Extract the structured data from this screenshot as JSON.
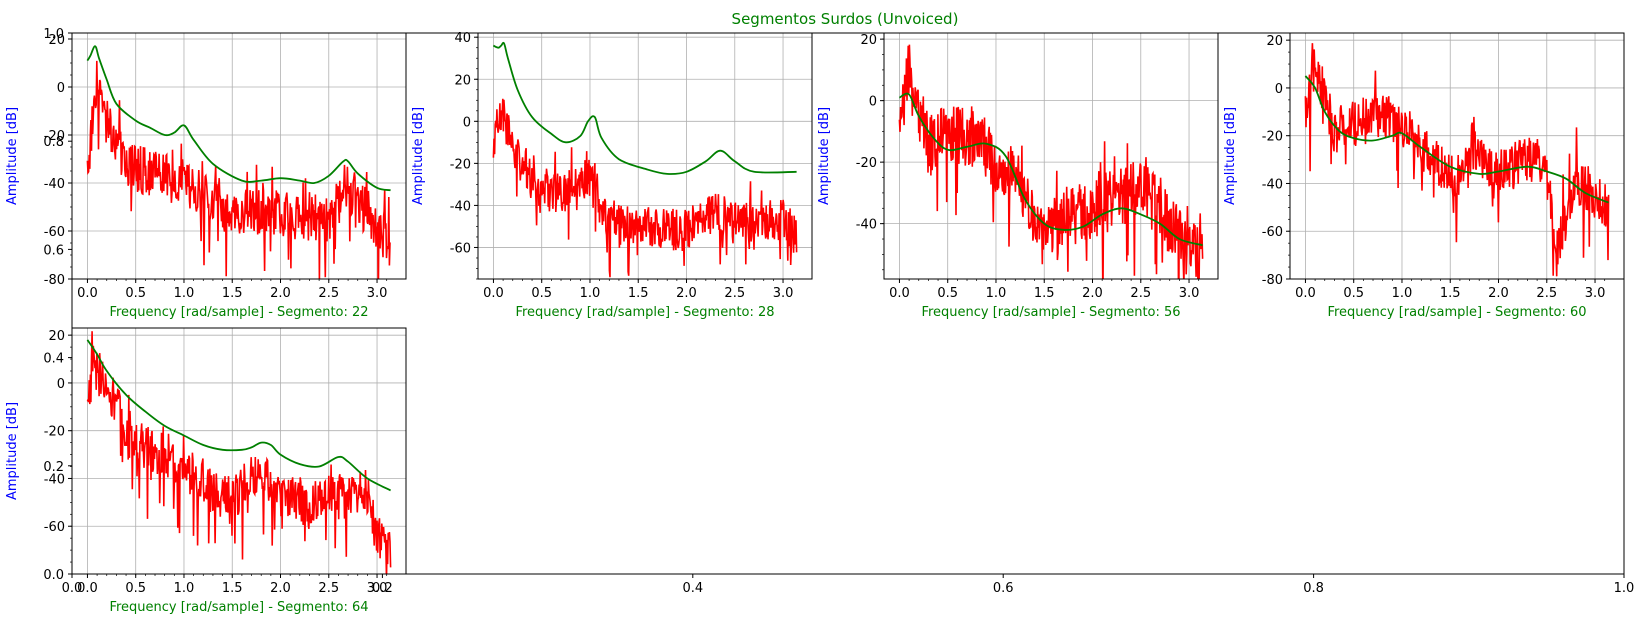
{
  "figure": {
    "title": "Segmentos Surdos (Unvoiced)",
    "title_color": "#008000",
    "ylabel_color": "#0000ff",
    "xlabel_color": "#008000",
    "envelope_color": "#008000",
    "spectrum_color": "#ff0000"
  },
  "background_axis": {
    "xlim": [
      0,
      1
    ],
    "ylim": [
      0,
      1
    ],
    "xticks": [
      "0.0",
      "0.2",
      "0.4",
      "0.6",
      "0.8",
      "1.0"
    ],
    "yticks": [
      "0.0",
      "0.2",
      "0.4",
      "0.6",
      "0.8",
      "1.0"
    ]
  },
  "chart_data": [
    {
      "type": "line",
      "xlabel": "Frequency [rad/sample] - Segmento: 22",
      "ylabel": "Amplitude [dB]",
      "xlim": [
        -0.16,
        3.3
      ],
      "ylim": [
        -80,
        22.5
      ],
      "xticks": [
        "0.0",
        "0.5",
        "1.0",
        "1.5",
        "2.0",
        "2.5",
        "3.0"
      ],
      "yticks": [
        "20",
        "0",
        "-20",
        "-40",
        "-60",
        "-80"
      ],
      "grid": true,
      "series": [
        {
          "role": "envelope",
          "x": [
            0.0,
            0.03,
            0.08,
            0.12,
            0.2,
            0.3,
            0.5,
            0.65,
            0.8,
            0.9,
            1.0,
            1.1,
            1.3,
            1.6,
            1.8,
            2.0,
            2.2,
            2.35,
            2.5,
            2.65,
            2.7,
            2.8,
            3.0,
            3.14
          ],
          "y": [
            11,
            13,
            17,
            12,
            3,
            -7,
            -14,
            -17,
            -20,
            -19,
            -16,
            -22,
            -32,
            -39,
            -39,
            -38,
            -39,
            -40,
            -37,
            -31,
            -31,
            -36,
            -42,
            -43
          ]
        },
        {
          "role": "spectrum",
          "x": [
            0.0,
            0.1,
            0.2,
            0.4,
            0.8,
            1.0,
            1.5,
            2.0,
            2.5,
            2.7,
            3.0,
            3.14
          ],
          "y": [
            -35,
            5,
            -15,
            -32,
            -38,
            -40,
            -52,
            -53,
            -55,
            -42,
            -58,
            -65
          ]
        }
      ]
    },
    {
      "type": "line",
      "xlabel": "Frequency [rad/sample] - Segmento: 28",
      "ylabel": "Amplitude [dB]",
      "xlim": [
        -0.16,
        3.3
      ],
      "ylim": [
        -75,
        42
      ],
      "xticks": [
        "0.0",
        "0.5",
        "1.0",
        "1.5",
        "2.0",
        "2.5",
        "3.0"
      ],
      "yticks": [
        "40",
        "20",
        "0",
        "-20",
        "-40",
        "-60"
      ],
      "grid": true,
      "series": [
        {
          "role": "envelope",
          "x": [
            0.0,
            0.05,
            0.08,
            0.11,
            0.15,
            0.25,
            0.4,
            0.6,
            0.75,
            0.9,
            0.98,
            1.05,
            1.12,
            1.3,
            1.6,
            1.8,
            2.0,
            2.2,
            2.35,
            2.5,
            2.7,
            3.14
          ],
          "y": [
            36,
            35,
            36,
            37,
            30,
            15,
            2,
            -6,
            -10,
            -7,
            0,
            2,
            -8,
            -18,
            -23,
            -25,
            -24,
            -19,
            -14,
            -19,
            -24,
            -24
          ]
        },
        {
          "role": "spectrum",
          "x": [
            0.0,
            0.1,
            0.2,
            0.5,
            0.9,
            1.05,
            1.1,
            1.5,
            2.0,
            2.3,
            2.5,
            3.0,
            3.14
          ],
          "y": [
            -8,
            5,
            -15,
            -35,
            -32,
            -20,
            -45,
            -50,
            -52,
            -42,
            -48,
            -47,
            -55
          ]
        }
      ]
    },
    {
      "type": "line",
      "xlabel": "Frequency [rad/sample] - Segmento: 56",
      "ylabel": "Amplitude [dB]",
      "xlim": [
        -0.16,
        3.3
      ],
      "ylim": [
        -58,
        22
      ],
      "xticks": [
        "0.0",
        "0.5",
        "1.0",
        "1.5",
        "2.0",
        "2.5",
        "3.0"
      ],
      "yticks": [
        "20",
        "0",
        "-20",
        "-40"
      ],
      "grid": true,
      "series": [
        {
          "role": "envelope",
          "x": [
            0.0,
            0.1,
            0.2,
            0.35,
            0.5,
            0.7,
            0.9,
            1.1,
            1.3,
            1.5,
            1.7,
            1.9,
            2.1,
            2.3,
            2.5,
            2.7,
            2.9,
            3.14
          ],
          "y": [
            1,
            2,
            -5,
            -12,
            -16,
            -15,
            -14,
            -18,
            -32,
            -40,
            -42,
            -41,
            -37,
            -35,
            -37,
            -40,
            -45,
            -47
          ]
        },
        {
          "role": "spectrum",
          "x": [
            0.0,
            0.1,
            0.3,
            0.5,
            0.8,
            1.0,
            1.2,
            1.5,
            1.7,
            2.0,
            2.5,
            2.8,
            3.0,
            3.14
          ],
          "y": [
            -12,
            10,
            -15,
            -10,
            -12,
            -20,
            -25,
            -45,
            -38,
            -35,
            -28,
            -40,
            -48,
            -53
          ]
        }
      ]
    },
    {
      "type": "line",
      "xlabel": "Frequency [rad/sample] - Segmento: 60",
      "ylabel": "Amplitude [dB]",
      "xlim": [
        -0.16,
        3.3
      ],
      "ylim": [
        -80,
        23
      ],
      "xticks": [
        "0.0",
        "0.5",
        "1.0",
        "1.5",
        "2.0",
        "2.5",
        "3.0"
      ],
      "yticks": [
        "20",
        "0",
        "-20",
        "-40",
        "-60",
        "-80"
      ],
      "grid": true,
      "series": [
        {
          "role": "envelope",
          "x": [
            0.0,
            0.1,
            0.2,
            0.35,
            0.5,
            0.7,
            0.9,
            1.0,
            1.2,
            1.5,
            1.8,
            2.0,
            2.3,
            2.5,
            2.7,
            2.9,
            3.14
          ],
          "y": [
            5,
            0,
            -10,
            -18,
            -21,
            -22,
            -20,
            -19,
            -25,
            -33,
            -36,
            -35,
            -33,
            -35,
            -38,
            -44,
            -48
          ]
        },
        {
          "role": "spectrum",
          "x": [
            0.0,
            0.1,
            0.3,
            0.5,
            0.8,
            1.0,
            1.2,
            1.5,
            1.8,
            2.0,
            2.3,
            2.5,
            2.6,
            2.8,
            3.0,
            3.14
          ],
          "y": [
            -10,
            10,
            -18,
            -15,
            -12,
            -15,
            -25,
            -38,
            -30,
            -35,
            -30,
            -30,
            -70,
            -38,
            -45,
            -50
          ]
        }
      ]
    },
    {
      "type": "line",
      "xlabel": "Frequency [rad/sample] - Segmento: 64",
      "ylabel": "Amplitude [dB]",
      "xlim": [
        -0.16,
        3.3
      ],
      "ylim": [
        -80,
        23
      ],
      "xticks": [
        "0.0",
        "0.5",
        "1.0",
        "1.5",
        "2.0",
        "2.5",
        "3.0"
      ],
      "yticks": [
        "20",
        "0",
        "-20",
        "-40",
        "-60"
      ],
      "grid": true,
      "series": [
        {
          "role": "envelope",
          "x": [
            0.0,
            0.1,
            0.2,
            0.4,
            0.6,
            0.8,
            1.0,
            1.2,
            1.4,
            1.6,
            1.7,
            1.8,
            1.9,
            2.0,
            2.2,
            2.4,
            2.6,
            2.7,
            2.9,
            3.14
          ],
          "y": [
            18,
            12,
            5,
            -5,
            -12,
            -18,
            -22,
            -26,
            -28,
            -28,
            -27,
            -25,
            -26,
            -30,
            -34,
            -35,
            -31,
            -33,
            -40,
            -45
          ]
        },
        {
          "role": "spectrum",
          "x": [
            0.0,
            0.05,
            0.1,
            0.3,
            0.5,
            0.8,
            1.0,
            1.3,
            1.5,
            1.8,
            2.0,
            2.3,
            2.5,
            2.7,
            2.9,
            3.0,
            3.14
          ],
          "y": [
            -15,
            15,
            5,
            -10,
            -25,
            -30,
            -35,
            -45,
            -50,
            -35,
            -48,
            -50,
            -45,
            -50,
            -45,
            -65,
            -72
          ]
        }
      ]
    }
  ]
}
